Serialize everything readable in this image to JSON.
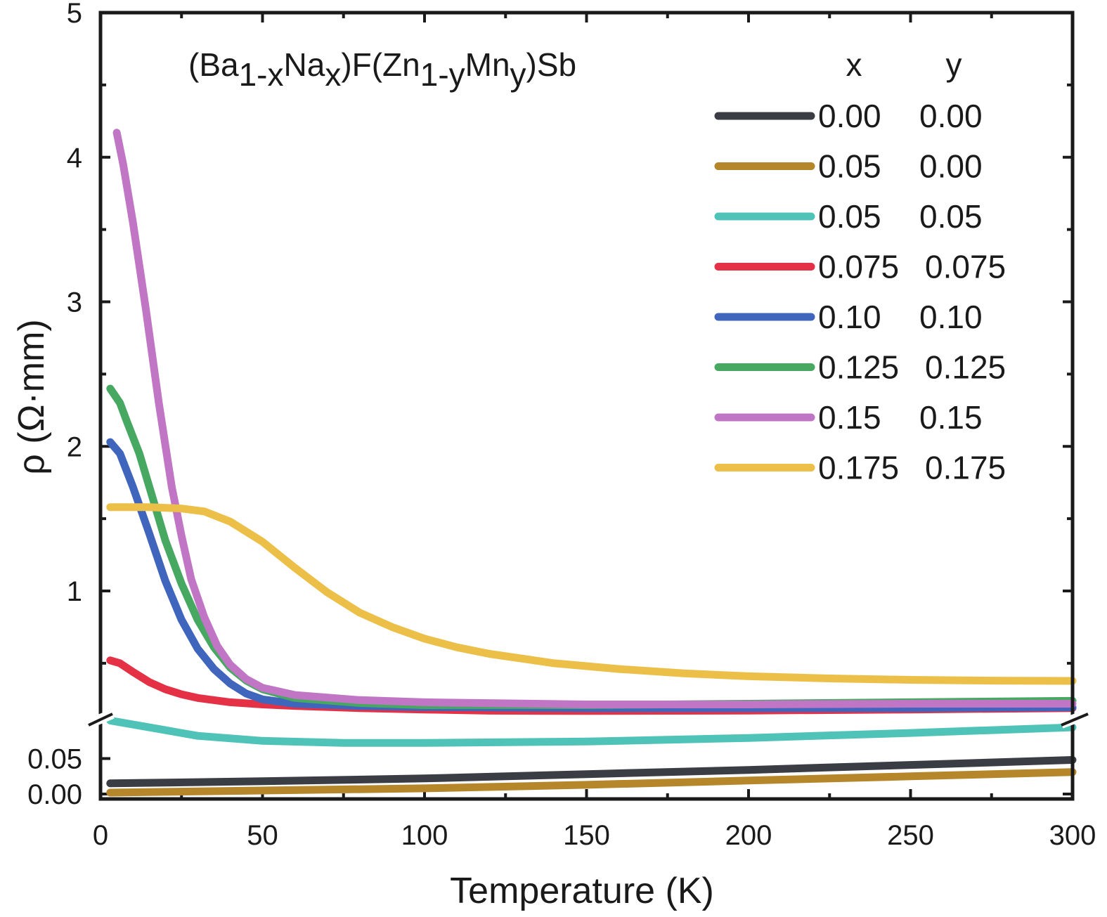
{
  "chart_data": {
    "type": "line",
    "title_parts": [
      "(Ba",
      "1-x",
      "Na",
      "x",
      ")F(Zn",
      "1-y",
      "Mn",
      "y",
      ")Sb"
    ],
    "xlabel": "Temperature (K)",
    "ylabel": "ρ (Ω·mm)",
    "xlim": [
      0,
      300
    ],
    "x_ticks": [
      "0",
      "50",
      "100",
      "150",
      "200",
      "250",
      "300"
    ],
    "y_upper_ticks": [
      "1",
      "2",
      "3",
      "4",
      "5"
    ],
    "y_lower_ticks": [
      "0.00",
      "0.05"
    ],
    "legend_header": {
      "x": "x",
      "y": "y"
    },
    "series": [
      {
        "x": "0.00",
        "y": "0.00",
        "color": "#3b3d45",
        "points": [
          [
            3,
            0.015
          ],
          [
            50,
            0.018
          ],
          [
            100,
            0.022
          ],
          [
            150,
            0.028
          ],
          [
            200,
            0.034
          ],
          [
            250,
            0.041
          ],
          [
            300,
            0.048
          ]
        ]
      },
      {
        "x": "0.05",
        "y": "0.00",
        "color": "#b5862a",
        "points": [
          [
            3,
            0.002
          ],
          [
            50,
            0.005
          ],
          [
            100,
            0.008
          ],
          [
            150,
            0.013
          ],
          [
            200,
            0.019
          ],
          [
            250,
            0.025
          ],
          [
            300,
            0.031
          ]
        ]
      },
      {
        "x": "0.05",
        "y": "0.05",
        "color": "#4fc3b8",
        "points": [
          [
            3,
            0.104
          ],
          [
            15,
            0.094
          ],
          [
            30,
            0.082
          ],
          [
            50,
            0.075
          ],
          [
            75,
            0.072
          ],
          [
            100,
            0.072
          ],
          [
            150,
            0.074
          ],
          [
            200,
            0.079
          ],
          [
            250,
            0.086
          ],
          [
            300,
            0.094
          ]
        ]
      },
      {
        "x": "0.075",
        "y": "0.075",
        "color": "#e53146",
        "points": [
          [
            3,
            0.52
          ],
          [
            6,
            0.5
          ],
          [
            10,
            0.44
          ],
          [
            15,
            0.37
          ],
          [
            20,
            0.32
          ],
          [
            25,
            0.285
          ],
          [
            30,
            0.26
          ],
          [
            40,
            0.23
          ],
          [
            50,
            0.215
          ],
          [
            60,
            0.205
          ],
          [
            80,
            0.19
          ],
          [
            100,
            0.18
          ],
          [
            120,
            0.172
          ],
          [
            150,
            0.17
          ],
          [
            200,
            0.173
          ],
          [
            250,
            0.18
          ],
          [
            300,
            0.19
          ]
        ]
      },
      {
        "x": "0.10",
        "y": "0.10",
        "color": "#3f65bd",
        "points": [
          [
            3,
            2.03
          ],
          [
            6,
            1.95
          ],
          [
            10,
            1.72
          ],
          [
            15,
            1.4
          ],
          [
            20,
            1.07
          ],
          [
            25,
            0.8
          ],
          [
            30,
            0.6
          ],
          [
            35,
            0.46
          ],
          [
            40,
            0.36
          ],
          [
            45,
            0.29
          ],
          [
            50,
            0.25
          ],
          [
            60,
            0.22
          ],
          [
            80,
            0.205
          ],
          [
            100,
            0.197
          ],
          [
            150,
            0.19
          ],
          [
            200,
            0.19
          ],
          [
            250,
            0.19
          ],
          [
            300,
            0.195
          ]
        ]
      },
      {
        "x": "0.125",
        "y": "0.125",
        "color": "#47a862",
        "points": [
          [
            3,
            2.4
          ],
          [
            6,
            2.3
          ],
          [
            8,
            2.18
          ],
          [
            12,
            1.95
          ],
          [
            16,
            1.65
          ],
          [
            20,
            1.35
          ],
          [
            25,
            1.05
          ],
          [
            30,
            0.8
          ],
          [
            35,
            0.61
          ],
          [
            40,
            0.47
          ],
          [
            45,
            0.38
          ],
          [
            50,
            0.32
          ],
          [
            60,
            0.26
          ],
          [
            80,
            0.225
          ],
          [
            100,
            0.21
          ],
          [
            150,
            0.21
          ],
          [
            200,
            0.22
          ],
          [
            250,
            0.23
          ],
          [
            300,
            0.24
          ]
        ]
      },
      {
        "x": "0.15",
        "y": "0.15",
        "color": "#c176c5",
        "points": [
          [
            5,
            4.17
          ],
          [
            7,
            3.95
          ],
          [
            10,
            3.55
          ],
          [
            14,
            2.95
          ],
          [
            18,
            2.3
          ],
          [
            22,
            1.72
          ],
          [
            25,
            1.38
          ],
          [
            28,
            1.08
          ],
          [
            32,
            0.82
          ],
          [
            36,
            0.62
          ],
          [
            40,
            0.49
          ],
          [
            45,
            0.39
          ],
          [
            50,
            0.33
          ],
          [
            60,
            0.28
          ],
          [
            80,
            0.245
          ],
          [
            100,
            0.23
          ],
          [
            150,
            0.215
          ],
          [
            200,
            0.215
          ],
          [
            250,
            0.22
          ],
          [
            300,
            0.22
          ]
        ]
      },
      {
        "x": "0.175",
        "y": "0.175",
        "color": "#ecc048",
        "points": [
          [
            3,
            1.58
          ],
          [
            15,
            1.58
          ],
          [
            25,
            1.57
          ],
          [
            32,
            1.55
          ],
          [
            40,
            1.48
          ],
          [
            50,
            1.34
          ],
          [
            60,
            1.16
          ],
          [
            70,
            0.99
          ],
          [
            80,
            0.85
          ],
          [
            90,
            0.75
          ],
          [
            100,
            0.67
          ],
          [
            110,
            0.61
          ],
          [
            120,
            0.565
          ],
          [
            140,
            0.5
          ],
          [
            160,
            0.46
          ],
          [
            180,
            0.43
          ],
          [
            200,
            0.41
          ],
          [
            225,
            0.395
          ],
          [
            250,
            0.385
          ],
          [
            275,
            0.38
          ],
          [
            300,
            0.378
          ]
        ]
      }
    ]
  }
}
